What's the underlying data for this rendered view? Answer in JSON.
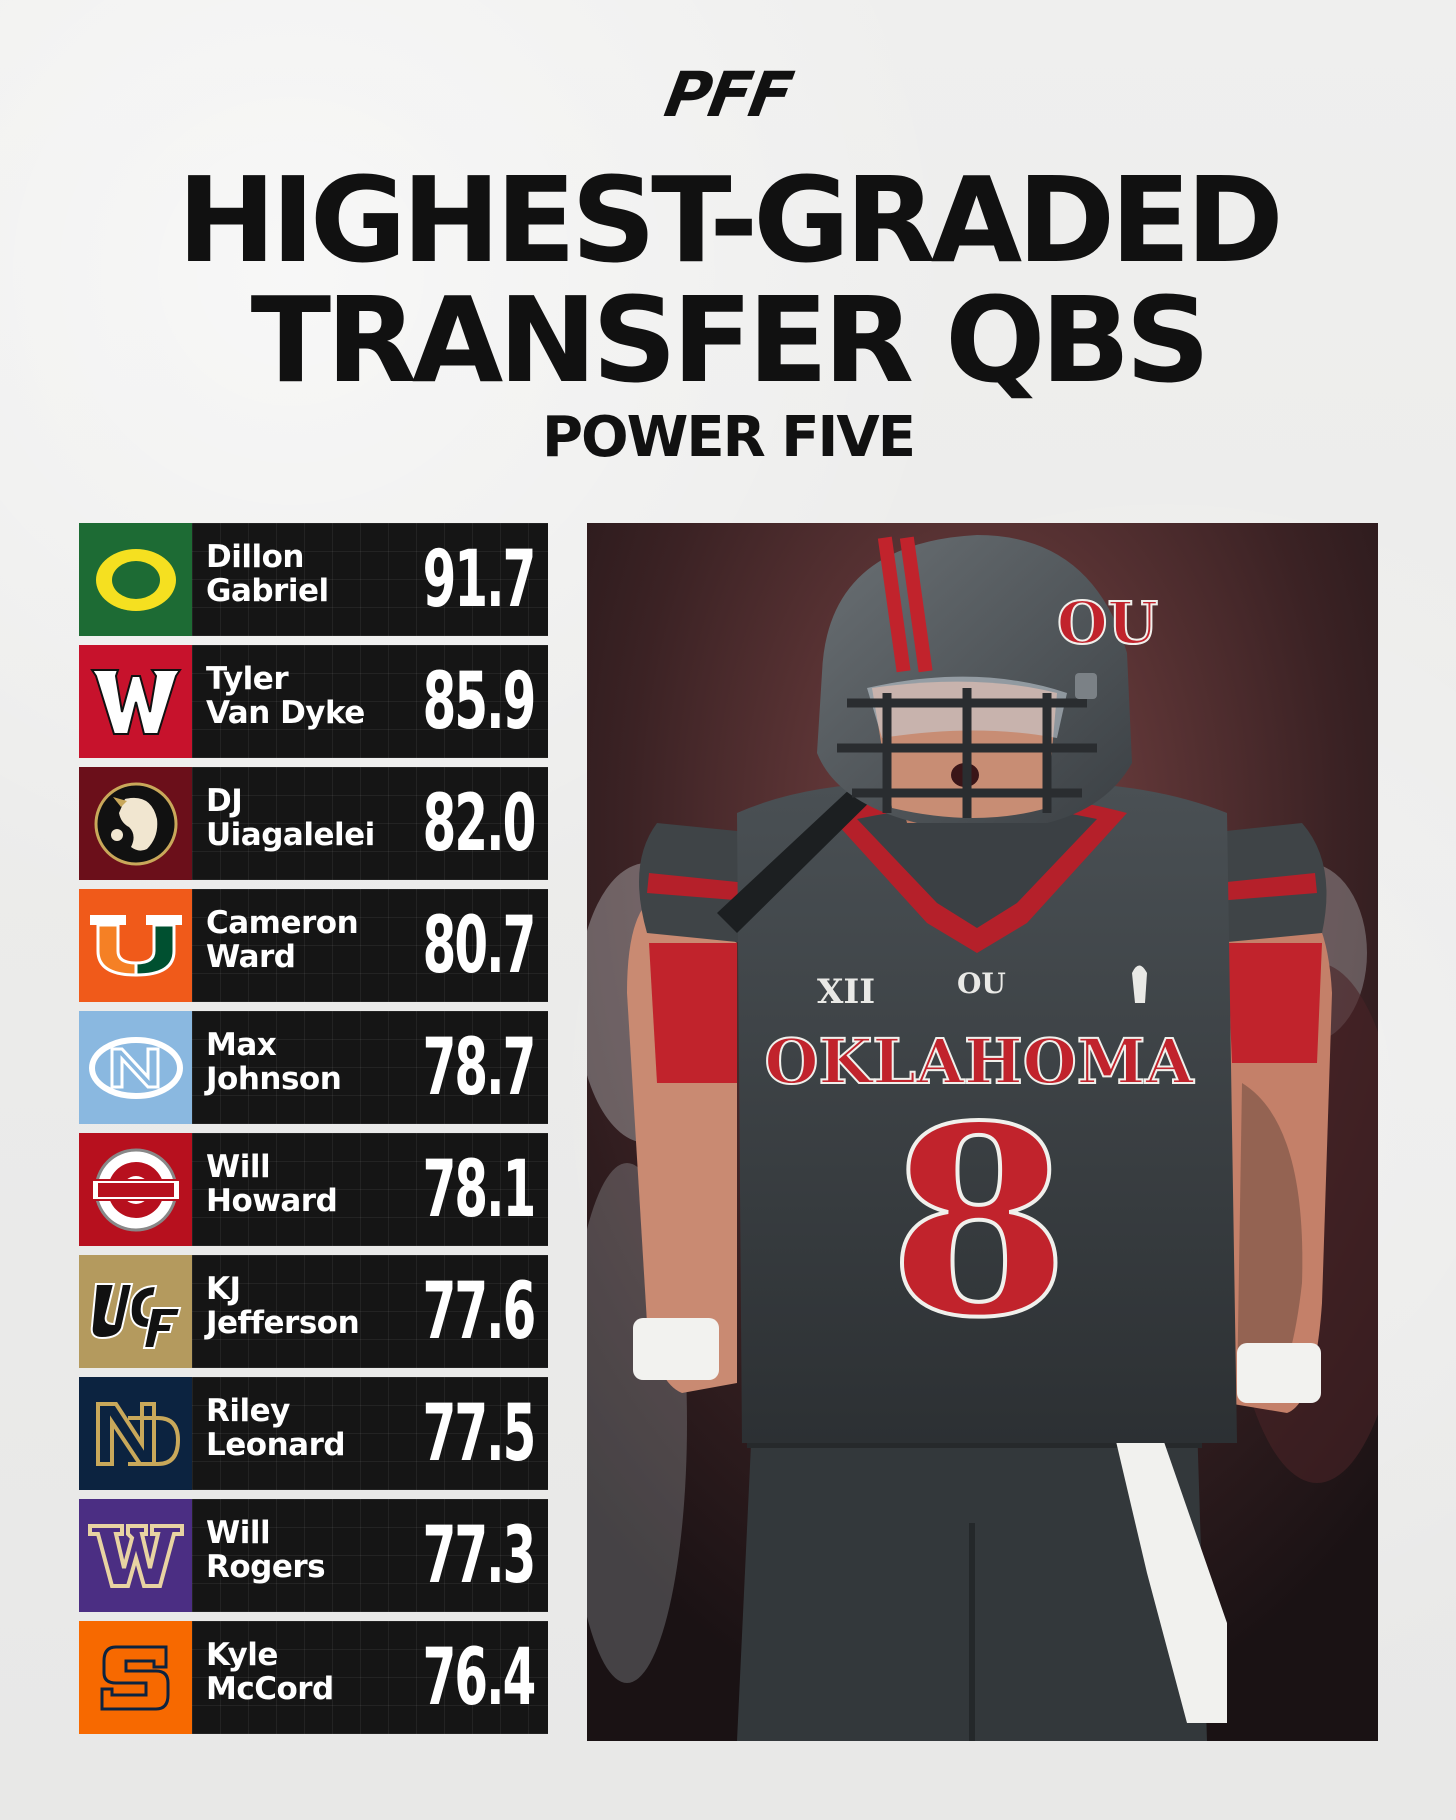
{
  "brand": "PFF",
  "title": {
    "line1": "HIGHEST-GRADED",
    "line2": "TRANSFER QBS"
  },
  "subtitle": "POWER FIVE",
  "players": [
    {
      "first": "Dillon",
      "last": "Gabriel",
      "grade": "91.7",
      "team_color": "#1d6b34",
      "team_icon": "oregon-o-logo-icon"
    },
    {
      "first": "Tyler",
      "last": "Van Dyke",
      "grade": "85.9",
      "team_color": "#c7122c",
      "team_icon": "wisconsin-w-logo-icon"
    },
    {
      "first": "DJ",
      "last": "Uiagalelei",
      "grade": "82.0",
      "team_color": "#6b0f1a",
      "team_icon": "florida-state-seminole-logo-icon"
    },
    {
      "first": "Cameron",
      "last": "Ward",
      "grade": "80.7",
      "team_color": "#f05a1a",
      "team_icon": "miami-u-logo-icon"
    },
    {
      "first": "Max",
      "last": "Johnson",
      "grade": "78.7",
      "team_color": "#8ab8e0",
      "team_icon": "north-carolina-nc-logo-icon"
    },
    {
      "first": "Will",
      "last": "Howard",
      "grade": "78.1",
      "team_color": "#b7101e",
      "team_icon": "ohio-state-logo-icon"
    },
    {
      "first": "KJ",
      "last": "Jefferson",
      "grade": "77.6",
      "team_color": "#b49a5e",
      "team_icon": "ucf-logo-icon"
    },
    {
      "first": "Riley",
      "last": "Leonard",
      "grade": "77.5",
      "team_color": "#0c2340",
      "team_icon": "notre-dame-nd-logo-icon"
    },
    {
      "first": "Will",
      "last": "Rogers",
      "grade": "77.3",
      "team_color": "#4b2e83",
      "team_icon": "washington-w-logo-icon"
    },
    {
      "first": "Kyle",
      "last": "McCord",
      "grade": "76.4",
      "team_color": "#f76900",
      "team_icon": "syracuse-s-logo-icon"
    }
  ],
  "photo": {
    "wordmark": "OKLAHOMA",
    "number": "8",
    "conference_mark": "XII",
    "helmet_mark": "OU"
  }
}
